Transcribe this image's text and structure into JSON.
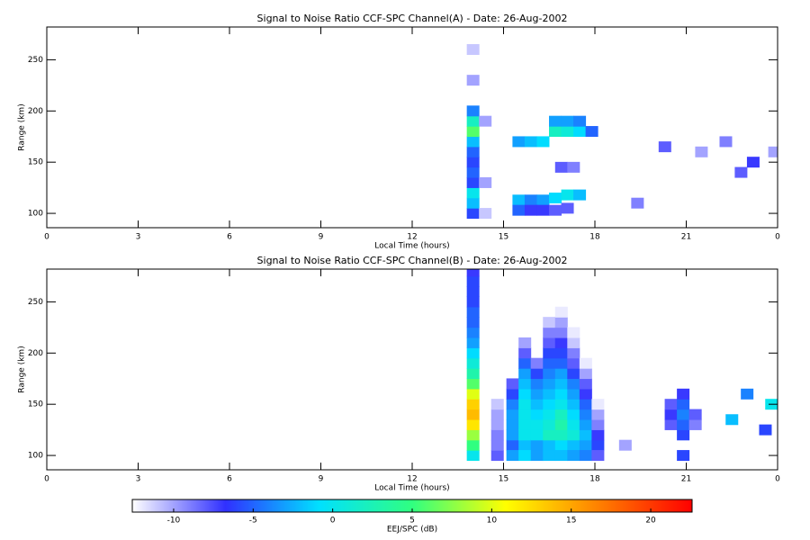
{
  "chart_data": [
    {
      "type": "heatmap",
      "title": "Signal to Noise Ratio CCF-SPC Channel(A) - Date: 26-Aug-2002",
      "xlabel": "Local Time (hours)",
      "ylabel": "Range (km)",
      "xlim": [
        0,
        24
      ],
      "xticks": [
        0,
        3,
        6,
        9,
        12,
        15,
        18,
        21,
        {
          "value": 24,
          "label": "0"
        }
      ],
      "ylim": [
        86,
        282
      ],
      "yticks": [
        100,
        150,
        200,
        250
      ],
      "x": [
        14.0,
        14.0,
        14.0,
        14.0,
        14.0,
        14.0,
        14.0,
        14.0,
        14.0,
        14.0,
        14.0,
        14.0,
        14.0,
        15.5,
        15.9,
        16.3,
        16.7,
        17.1,
        17.5,
        17.9,
        16.7,
        17.1,
        17.5,
        15.5,
        15.9,
        16.3,
        16.7,
        17.1,
        17.5,
        15.5,
        15.9,
        16.3,
        16.7,
        17.1,
        16.9,
        17.3,
        14.4,
        14.4,
        14.4,
        20.3,
        21.5,
        22.3,
        22.8,
        23.2,
        19.4,
        23.9
      ],
      "y": [
        100,
        110,
        120,
        130,
        140,
        150,
        160,
        170,
        180,
        190,
        200,
        230,
        260,
        170,
        170,
        170,
        180,
        180,
        180,
        180,
        190,
        190,
        190,
        113,
        113,
        113,
        115,
        118,
        118,
        103,
        103,
        103,
        103,
        105,
        145,
        145,
        190,
        130,
        100,
        165,
        160,
        170,
        140,
        150,
        110,
        160
      ],
      "values": [
        -6,
        -2,
        0,
        -6,
        -5,
        -6,
        -5,
        -2,
        6,
        2,
        -4,
        -10,
        -11,
        -3,
        -2,
        -1,
        2,
        1,
        -1,
        -5,
        -3,
        -3,
        -4,
        -2,
        -4,
        -3,
        -1,
        0,
        -2,
        -5,
        -7,
        -7,
        -8,
        -8,
        -8,
        -9,
        -10,
        -10,
        -11,
        -8,
        -10,
        -9,
        -8,
        -7,
        -9,
        -10
      ]
    },
    {
      "type": "heatmap",
      "title": "Signal to Noise Ratio CCF-SPC Channel(B) - Date: 26-Aug-2002",
      "xlabel": "Local Time (hours)",
      "ylabel": "Range (km)",
      "xlim": [
        0,
        24
      ],
      "xticks": [
        0,
        3,
        6,
        9,
        12,
        15,
        18,
        21,
        {
          "value": 24,
          "label": "0"
        }
      ],
      "ylim": [
        86,
        282
      ],
      "yticks": [
        100,
        150,
        200,
        250
      ],
      "x": [
        14.0,
        14.0,
        14.0,
        14.0,
        14.0,
        14.0,
        14.0,
        14.0,
        14.0,
        14.0,
        14.0,
        14.0,
        14.0,
        14.0,
        14.0,
        14.0,
        14.0,
        14.0,
        14.0,
        14.8,
        14.8,
        14.8,
        14.8,
        14.8,
        14.8,
        15.3,
        15.3,
        15.3,
        15.3,
        15.3,
        15.3,
        15.3,
        15.7,
        15.7,
        15.7,
        15.7,
        15.7,
        15.7,
        15.7,
        15.7,
        15.7,
        15.7,
        15.7,
        16.1,
        16.1,
        16.1,
        16.1,
        16.1,
        16.1,
        16.1,
        16.1,
        16.1,
        16.5,
        16.5,
        16.5,
        16.5,
        16.5,
        16.5,
        16.5,
        16.5,
        16.5,
        16.5,
        16.5,
        16.5,
        16.5,
        16.9,
        16.9,
        16.9,
        16.9,
        16.9,
        16.9,
        16.9,
        16.9,
        16.9,
        16.9,
        16.9,
        16.9,
        16.9,
        16.9,
        17.3,
        17.3,
        17.3,
        17.3,
        17.3,
        17.3,
        17.3,
        17.3,
        17.3,
        17.3,
        17.3,
        17.3,
        17.7,
        17.7,
        17.7,
        17.7,
        17.7,
        17.7,
        17.7,
        17.7,
        17.7,
        18.1,
        18.1,
        18.1,
        18.1,
        18.1,
        15.3,
        15.7,
        16.1,
        16.5,
        16.9,
        17.3,
        17.7,
        18.1,
        20.5,
        20.5,
        20.5,
        20.9,
        20.9,
        20.9,
        20.9,
        20.9,
        21.3,
        21.3,
        20.9,
        22.5,
        23.0,
        23.6,
        19.0,
        23.8
      ],
      "y": [
        100,
        110,
        120,
        130,
        140,
        150,
        160,
        170,
        180,
        190,
        200,
        210,
        220,
        230,
        240,
        250,
        260,
        270,
        280,
        100,
        110,
        120,
        130,
        140,
        150,
        110,
        120,
        130,
        140,
        150,
        160,
        170,
        110,
        120,
        130,
        140,
        150,
        160,
        170,
        180,
        190,
        200,
        210,
        110,
        120,
        130,
        140,
        150,
        160,
        170,
        180,
        190,
        110,
        120,
        130,
        140,
        150,
        160,
        170,
        180,
        190,
        200,
        210,
        220,
        230,
        110,
        120,
        130,
        140,
        150,
        160,
        170,
        180,
        190,
        200,
        210,
        220,
        230,
        240,
        110,
        120,
        130,
        140,
        150,
        160,
        170,
        180,
        190,
        200,
        210,
        220,
        110,
        120,
        130,
        140,
        150,
        160,
        170,
        180,
        190,
        110,
        120,
        130,
        140,
        150,
        100,
        100,
        100,
        100,
        100,
        100,
        100,
        100,
        130,
        140,
        150,
        120,
        130,
        140,
        150,
        160,
        130,
        140,
        100,
        135,
        160,
        125,
        110,
        150
      ],
      "values": [
        0,
        5,
        8,
        12,
        14,
        13,
        10,
        6,
        3,
        1,
        -1,
        -3,
        -4,
        -5,
        -5,
        -6,
        -6,
        -6,
        -7,
        -8,
        -9,
        -9,
        -10,
        -10,
        -11,
        -5,
        -3,
        -3,
        -3,
        -4,
        -6,
        -8,
        -2,
        0,
        0,
        0,
        0,
        -1,
        -2,
        -3,
        -5,
        -8,
        -10,
        -3,
        0,
        0,
        -1,
        -2,
        -3,
        -4,
        -6,
        -9,
        -2,
        2,
        1,
        0,
        -1,
        -2,
        -3,
        -4,
        -5,
        -6,
        -8,
        -9,
        -11,
        -1,
        2,
        3,
        2,
        0,
        -1,
        -2,
        -3,
        -5,
        -6,
        -7,
        -9,
        -10,
        -12,
        -2,
        1,
        0,
        -1,
        -2,
        -3,
        -4,
        -6,
        -8,
        -9,
        -11,
        -12,
        -3,
        -2,
        -3,
        -4,
        -5,
        -7,
        -8,
        -10,
        -12,
        -6,
        -7,
        -9,
        -10,
        -12,
        -3,
        -1,
        -3,
        -2,
        -2,
        -3,
        -4,
        -8,
        -8,
        -7,
        -8,
        -6,
        -5,
        -4,
        -5,
        -7,
        -9,
        -8,
        -6,
        -2,
        -4,
        -6,
        -10,
        0
      ]
    }
  ],
  "colorbar": {
    "label": "EEJ/SPC (dB)",
    "lim": [
      -12.6,
      22.6
    ],
    "ticks": [
      -10,
      -5,
      0,
      5,
      10,
      15,
      20
    ],
    "colormap": [
      "#ffffff",
      "#3030ff",
      "#00e0ff",
      "#30ff80",
      "#ffff00",
      "#ff8000",
      "#ff0000"
    ]
  }
}
